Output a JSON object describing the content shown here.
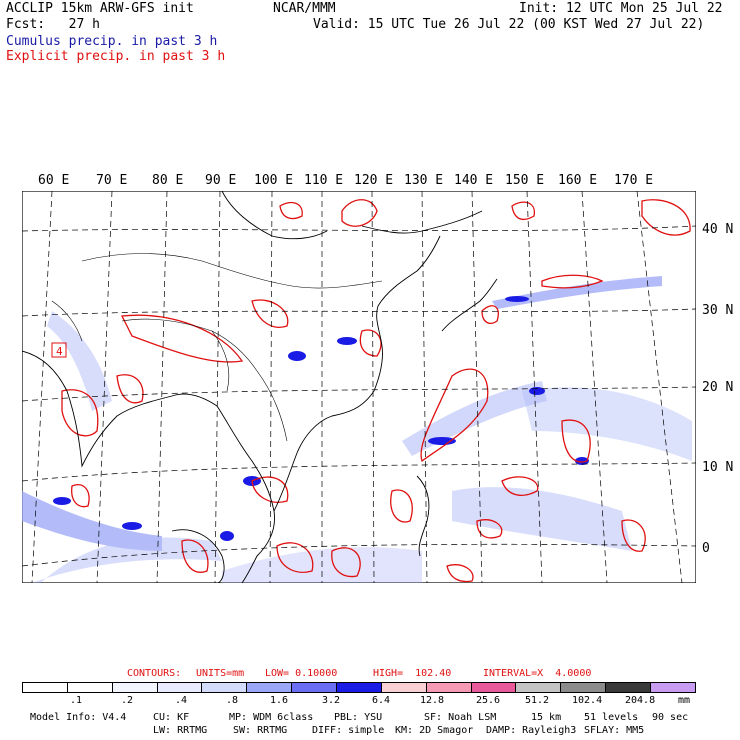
{
  "header": {
    "model_line": "ACCLIP 15km ARW-GFS init",
    "fcst_line": "Fcst:   27 h",
    "center": "NCAR/MMM",
    "init": "Init: 12 UTC Mon 25 Jul 22",
    "valid": "Valid: 15 UTC Tue 26 Jul 22 (00 KST Wed 27 Jul 22)",
    "legend_cumulus": "Cumulus precip. in past 3 h",
    "legend_explicit": "Explicit precip. in past 3 h",
    "colors": {
      "cumulus": "#1a1aa6",
      "explicit": "#e01010"
    }
  },
  "map": {
    "lon_labels": [
      "60 E",
      "70 E",
      "80 E",
      "90 E",
      "100 E",
      "110 E",
      "120 E",
      "130 E",
      "140 E",
      "150 E",
      "160 E",
      "170 E"
    ],
    "lat_labels": [
      "40 N",
      "30 N",
      "20 N",
      "10 N",
      "0"
    ],
    "station_marker": "4"
  },
  "contours": {
    "label": "CONTOURS:",
    "units": "UNITS=mm",
    "low": "LOW= 0.10000",
    "high": "HIGH=  102.40",
    "interval": "INTERVAL=X  4.0000"
  },
  "colorbar": {
    "colors": [
      "#ffffff",
      "#ffffff",
      "#f4f6ff",
      "#e8ecfe",
      "#d4dcfc",
      "#9aa6f6",
      "#6a6ef2",
      "#1b1be6",
      "#f8d0d4",
      "#f49ab4",
      "#e85a9a",
      "#c4c4c4",
      "#8c8c8c",
      "#3a3a3a",
      "#c89cf0"
    ],
    "ticks": [
      ".1",
      ".2",
      ".4",
      ".8",
      "1.6",
      "3.2",
      "6.4",
      "12.8",
      "25.6",
      "51.2",
      "102.4",
      "204.8"
    ],
    "unit": "mm"
  },
  "info": {
    "line1": [
      "Model Info: V4.4",
      "CU: KF",
      "MP: WDM 6class",
      "PBL: YSU",
      "SF: Noah LSM",
      "15 km",
      "51 levels",
      "90 sec"
    ],
    "line2": [
      "LW: RRTMG",
      "SW: RRTMG",
      "DIFF: simple",
      "KM: 2D Smagor",
      "DAMP: Rayleigh3",
      "SFLAY: MM5"
    ]
  }
}
